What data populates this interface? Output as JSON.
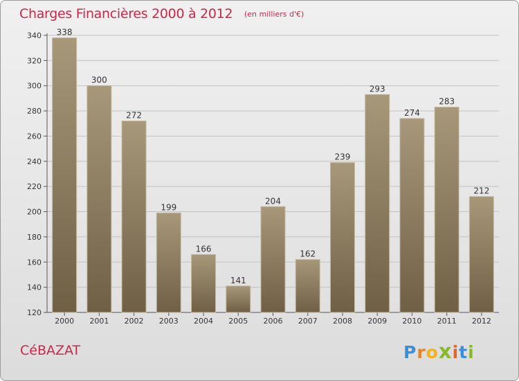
{
  "header": {
    "title": "Charges Financières 2000 à 2012",
    "subtitle": "(en milliers d'€)"
  },
  "footer": {
    "city": "CéBAZAT",
    "logo_letters": [
      {
        "char": "P",
        "color": "#3a8fd6"
      },
      {
        "char": "r",
        "color": "#e2852a"
      },
      {
        "char": "o",
        "color": "#f2b21e"
      },
      {
        "char": "x",
        "color": "#8ab82c"
      },
      {
        "char": "i",
        "color": "#e0662b"
      },
      {
        "char": "t",
        "color": "#3a8fd6"
      },
      {
        "char": "i",
        "color": "#8ab82c"
      }
    ]
  },
  "chart_data": {
    "type": "bar",
    "title": "Charges Financières 2000 à 2012",
    "subtitle": "(en milliers d'€)",
    "categories": [
      "2000",
      "2001",
      "2002",
      "2003",
      "2004",
      "2005",
      "2006",
      "2007",
      "2008",
      "2009",
      "2010",
      "2011",
      "2012"
    ],
    "values": [
      338,
      300,
      272,
      199,
      166,
      141,
      204,
      162,
      239,
      293,
      274,
      283,
      212
    ],
    "ylim": [
      120,
      340
    ],
    "yticks": [
      120,
      140,
      160,
      180,
      200,
      220,
      240,
      260,
      280,
      300,
      320,
      340
    ],
    "grid": true,
    "bar_color": "#8a7a5e",
    "bar_color_light": "#a8987a",
    "bar_color_dark": "#6f5f45"
  }
}
